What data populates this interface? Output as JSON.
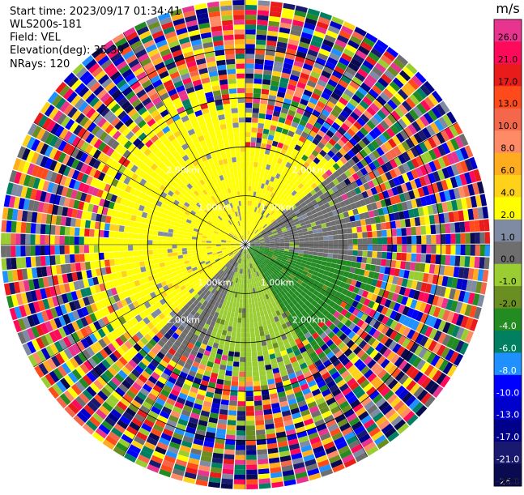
{
  "header": {
    "start_time": "Start time: 2023/09/17 01:34:41",
    "instrument": "WLS200s-181",
    "field": "Field: VEL",
    "elevation": "Elevation(deg): 35.30",
    "nrays": "NRays: 120"
  },
  "colorbar": {
    "unit": "m/s",
    "bins": [
      {
        "label": "26.0",
        "color": "#e8338f"
      },
      {
        "label": "21.0",
        "color": "#ff0a5a"
      },
      {
        "label": "17.0",
        "color": "#ea1b1b"
      },
      {
        "label": "13.0",
        "color": "#ff4b1c"
      },
      {
        "label": "10.0",
        "color": "#f5674a"
      },
      {
        "label": "8.0",
        "color": "#ff8a66"
      },
      {
        "label": "6.0",
        "color": "#ffad1f"
      },
      {
        "label": "4.0",
        "color": "#ffd21a"
      },
      {
        "label": "2.0",
        "color": "#ffff00"
      },
      {
        "label": "1.0",
        "color": "#7f8aa3"
      },
      {
        "label": "0.0",
        "color": "#6e6e6e"
      },
      {
        "label": "-1.0",
        "color": "#9acd32"
      },
      {
        "label": "-2.0",
        "color": "#6b8e23"
      },
      {
        "label": "-4.0",
        "color": "#228b22"
      },
      {
        "label": "-6.0",
        "color": "#008060"
      },
      {
        "label": "-8.0",
        "color": "#1e90ff"
      },
      {
        "label": "-10.0",
        "color": "#0000ff"
      },
      {
        "label": "-13.0",
        "color": "#0000cd"
      },
      {
        "label": "-17.0",
        "color": "#00008b"
      },
      {
        "label": "-21.0",
        "color": "#191970"
      },
      {
        "label": "-26.0",
        "color": "#0a0a50"
      },
      {
        "label": "-30.0",
        "color": ""
      }
    ]
  },
  "chart_data": {
    "type": "heatmap",
    "field": "VEL",
    "units": "m/s",
    "nrays": 120,
    "range_rings_km": [
      1.0,
      2.0
    ],
    "range_ring_labels": [
      "1.00km",
      "2.00km"
    ],
    "max_range_km": 5.0,
    "azimuth_sectors": [
      {
        "from_deg": 225,
        "to_deg": 360,
        "velocity_m_s": 2.0,
        "valid_range_km": [
          0.2,
          2.8
        ]
      },
      {
        "from_deg": 0,
        "to_deg": 50,
        "velocity_m_s": 2.0,
        "valid_range_km": [
          0.2,
          2.0
        ]
      },
      {
        "from_deg": 50,
        "to_deg": 100,
        "velocity_m_s": 0.0,
        "valid_range_km": [
          0.2,
          2.2
        ]
      },
      {
        "from_deg": 100,
        "to_deg": 150,
        "velocity_m_s": -4.0,
        "valid_range_km": [
          0.2,
          2.2
        ]
      },
      {
        "from_deg": 150,
        "to_deg": 200,
        "velocity_m_s": -1.0,
        "valid_range_km": [
          0.2,
          2.2
        ]
      },
      {
        "from_deg": 200,
        "to_deg": 225,
        "velocity_m_s": 0.0,
        "valid_range_km": [
          0.2,
          2.2
        ]
      }
    ],
    "beyond_valid_range": "noise (random colors across full scale)"
  }
}
